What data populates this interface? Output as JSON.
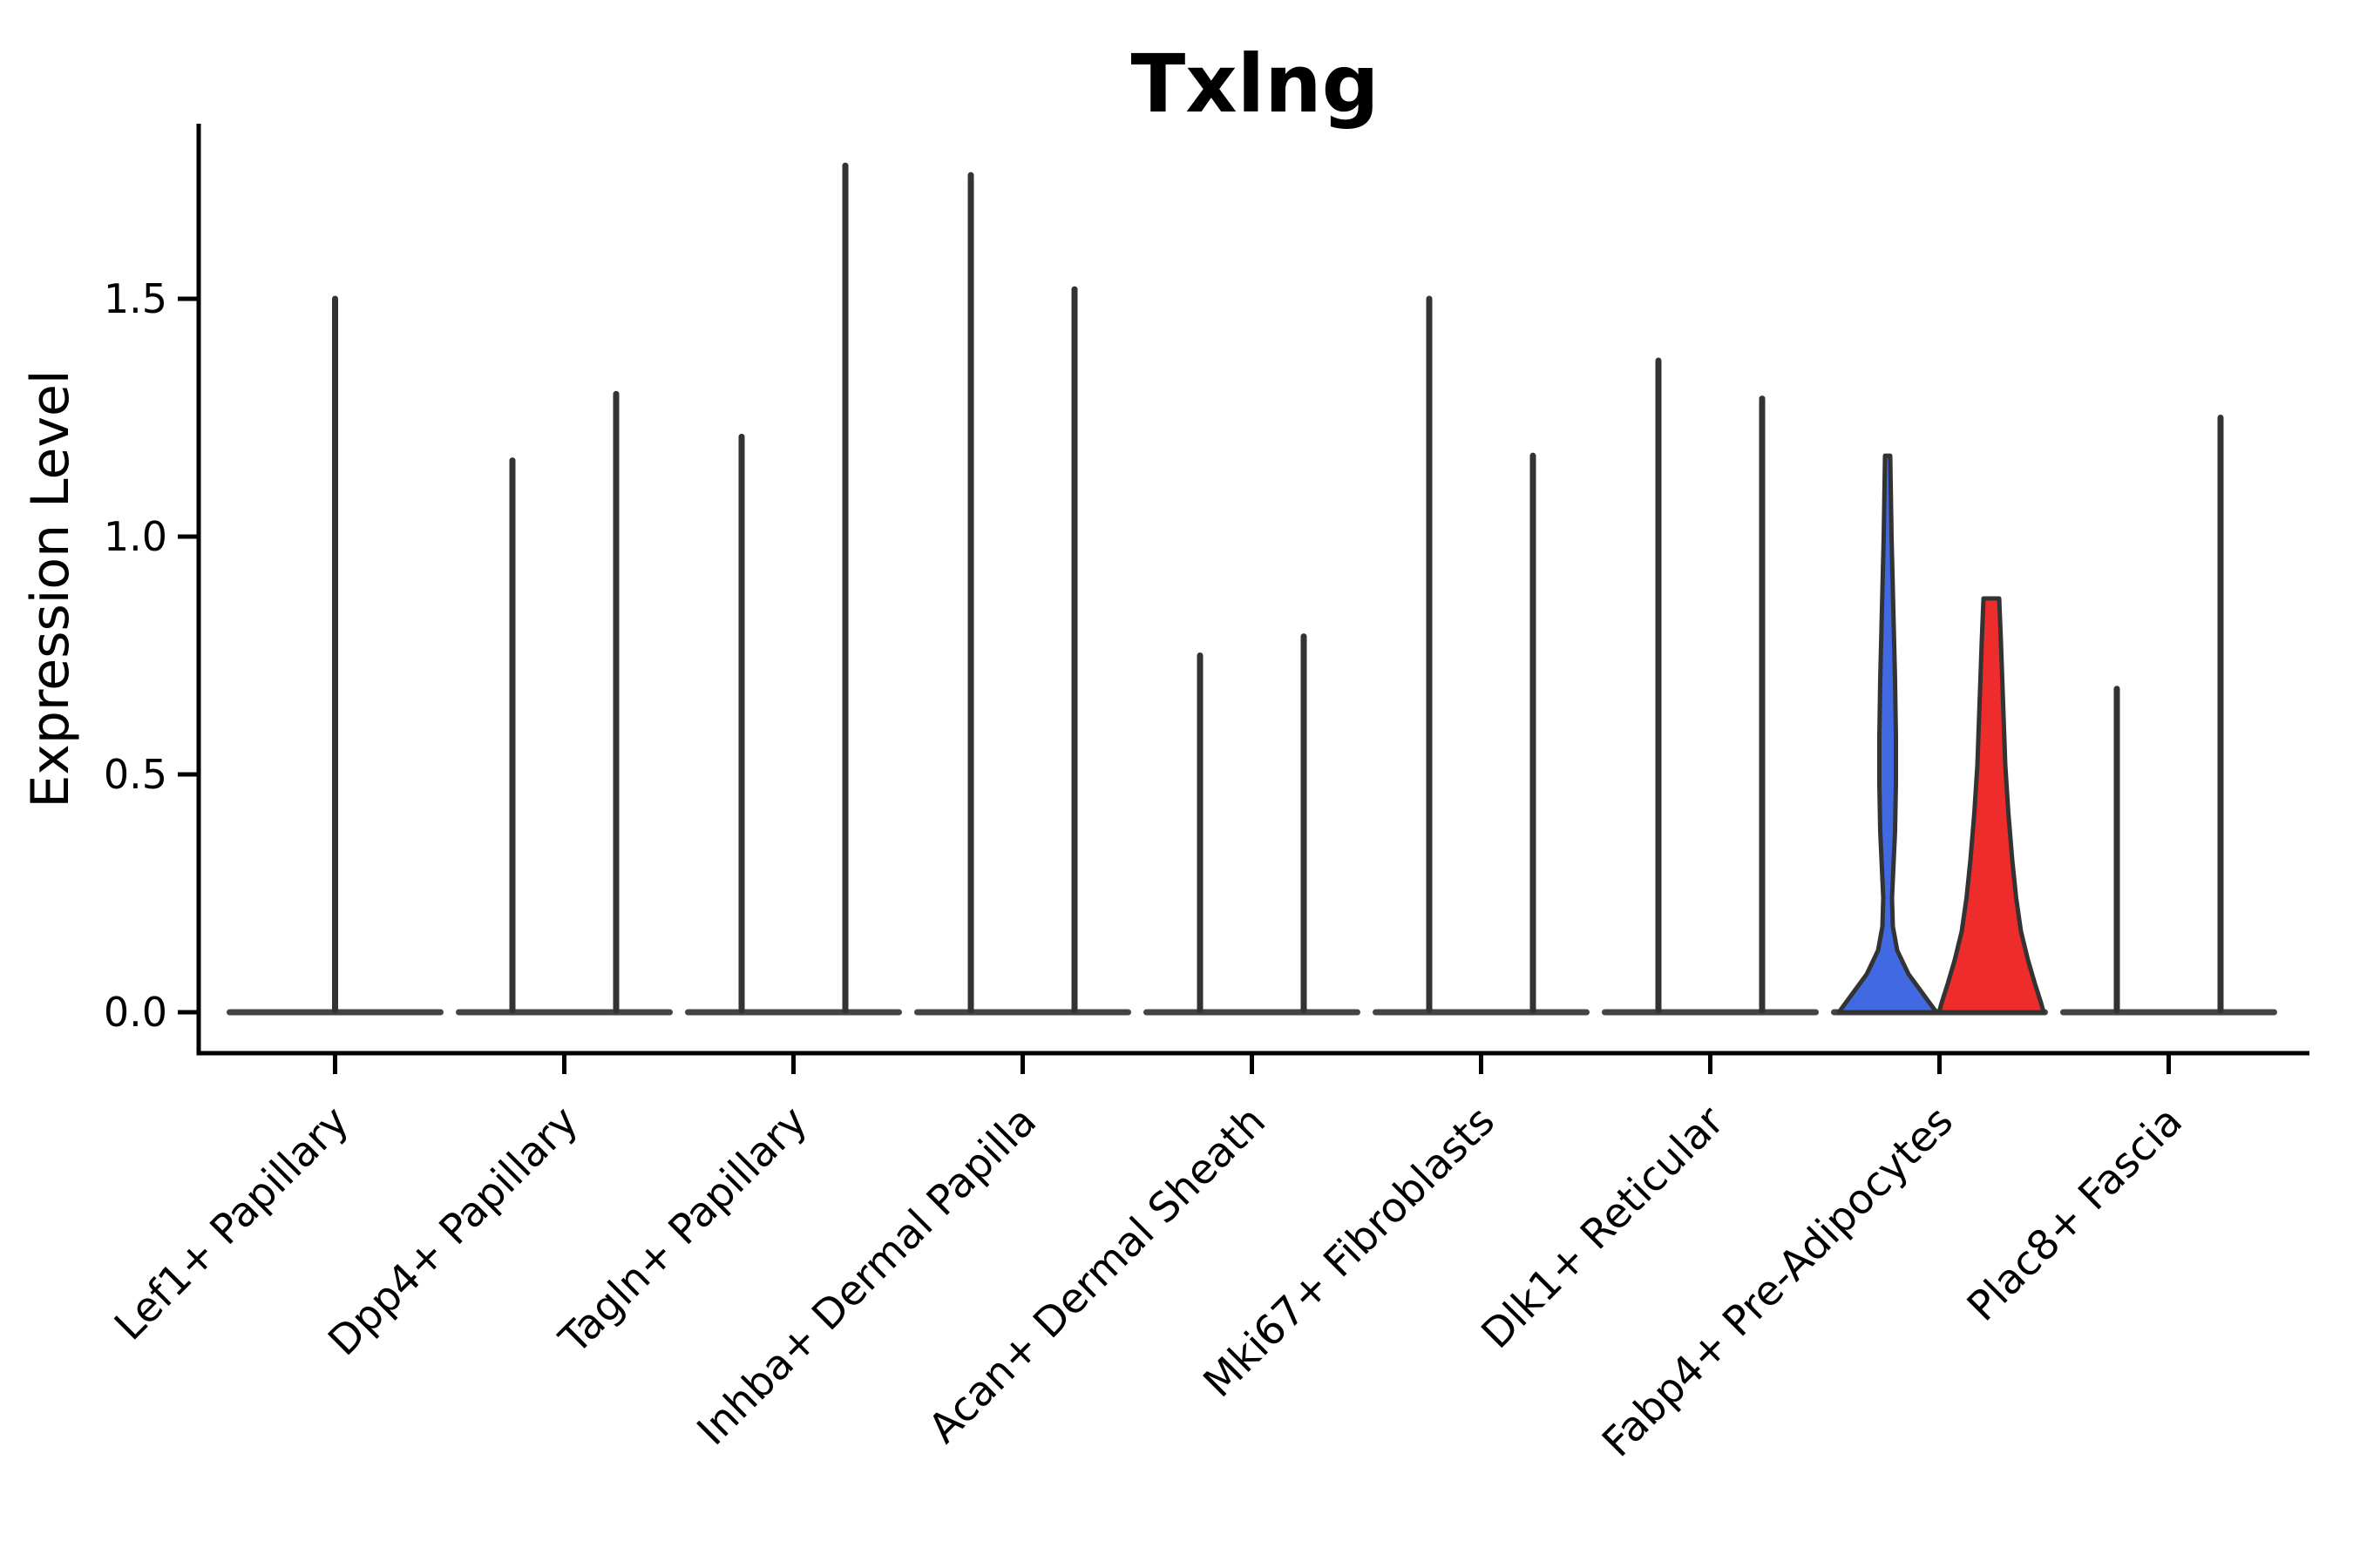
{
  "chart_data": {
    "type": "violin",
    "title": "Txlng",
    "ylabel": "Expression Level",
    "grid": false,
    "legend": "none",
    "ylim": [
      -0.09,
      1.87
    ],
    "yticks": [
      {
        "value": 0.0,
        "label": "0.0"
      },
      {
        "value": 0.5,
        "label": "0.5"
      },
      {
        "value": 1.0,
        "label": "1.0"
      },
      {
        "value": 1.5,
        "label": "1.5"
      }
    ],
    "categories": [
      "Lef1+ Papillary",
      "Dpp4+ Papillary",
      "Tagln+ Papillary",
      "Inhba+ Dermal Papilla",
      "Acan+ Dermal Sheath",
      "Mki67+ Fibroblasts",
      "Dlk1+ Reticular",
      "Fabp4+ Pre-Adipocytes",
      "Plac8+ Fascia"
    ],
    "violins": [
      {
        "category": "Lef1+ Papillary",
        "slot": 0,
        "max_expression": 1.5,
        "bulk_at_zero": true,
        "style": "collapsed"
      },
      {
        "category": "Dpp4+ Papillary",
        "slot": -1,
        "max_expression": 1.16,
        "bulk_at_zero": true,
        "style": "collapsed"
      },
      {
        "category": "Dpp4+ Papillary",
        "slot": 1,
        "max_expression": 1.3,
        "bulk_at_zero": true,
        "style": "collapsed"
      },
      {
        "category": "Tagln+ Papillary",
        "slot": -1,
        "max_expression": 1.21,
        "bulk_at_zero": true,
        "style": "collapsed"
      },
      {
        "category": "Tagln+ Papillary",
        "slot": 1,
        "max_expression": 1.78,
        "bulk_at_zero": true,
        "style": "collapsed"
      },
      {
        "category": "Inhba+ Dermal Papilla",
        "slot": -1,
        "max_expression": 1.76,
        "bulk_at_zero": true,
        "style": "collapsed"
      },
      {
        "category": "Inhba+ Dermal Papilla",
        "slot": 1,
        "max_expression": 1.52,
        "bulk_at_zero": true,
        "style": "collapsed"
      },
      {
        "category": "Acan+ Dermal Sheath",
        "slot": -1,
        "max_expression": 0.75,
        "bulk_at_zero": true,
        "style": "collapsed"
      },
      {
        "category": "Acan+ Dermal Sheath",
        "slot": 1,
        "max_expression": 0.79,
        "bulk_at_zero": true,
        "style": "collapsed"
      },
      {
        "category": "Mki67+ Fibroblasts",
        "slot": -1,
        "max_expression": 1.5,
        "bulk_at_zero": true,
        "style": "collapsed"
      },
      {
        "category": "Mki67+ Fibroblasts",
        "slot": 1,
        "max_expression": 1.17,
        "bulk_at_zero": true,
        "style": "collapsed"
      },
      {
        "category": "Dlk1+ Reticular",
        "slot": -1,
        "max_expression": 1.37,
        "bulk_at_zero": true,
        "style": "collapsed"
      },
      {
        "category": "Dlk1+ Reticular",
        "slot": 1,
        "max_expression": 1.29,
        "bulk_at_zero": true,
        "style": "collapsed"
      },
      {
        "category": "Fabp4+ Pre-Adipocytes",
        "slot": -1,
        "max_expression": 1.17,
        "bulk_at_zero": true,
        "style": "shaped",
        "fill": "#4169E1",
        "profile": [
          [
            1.17,
            3
          ],
          [
            1.0,
            4.5
          ],
          [
            0.85,
            6.5
          ],
          [
            0.7,
            8.5
          ],
          [
            0.58,
            9.5
          ],
          [
            0.48,
            9.5
          ],
          [
            0.38,
            8.5
          ],
          [
            0.3,
            6.5
          ],
          [
            0.24,
            5
          ],
          [
            0.18,
            6
          ],
          [
            0.13,
            11
          ],
          [
            0.08,
            24
          ],
          [
            0.04,
            40
          ],
          [
            0.01,
            52
          ],
          [
            0.0,
            56
          ]
        ]
      },
      {
        "category": "Fabp4+ Pre-Adipocytes",
        "slot": 1,
        "max_expression": 0.87,
        "bulk_at_zero": true,
        "style": "shaped",
        "fill": "#EE2C2C",
        "profile": [
          [
            0.87,
            9
          ],
          [
            0.78,
            11
          ],
          [
            0.65,
            13.5
          ],
          [
            0.52,
            16
          ],
          [
            0.42,
            19.5
          ],
          [
            0.32,
            24
          ],
          [
            0.24,
            28.5
          ],
          [
            0.17,
            34
          ],
          [
            0.11,
            42
          ],
          [
            0.06,
            50
          ],
          [
            0.02,
            57
          ],
          [
            0.0,
            60
          ]
        ]
      },
      {
        "category": "Plac8+ Fascia",
        "slot": -1,
        "max_expression": 0.68,
        "bulk_at_zero": true,
        "style": "collapsed"
      },
      {
        "category": "Plac8+ Fascia",
        "slot": 1,
        "max_expression": 1.25,
        "bulk_at_zero": true,
        "style": "collapsed"
      }
    ],
    "colors": {
      "group1_fill": "#4169E1",
      "group2_fill": "#EE2C2C",
      "violin_outline": "#333333",
      "zero_baseline": "#444444",
      "axis": "#000000"
    }
  }
}
